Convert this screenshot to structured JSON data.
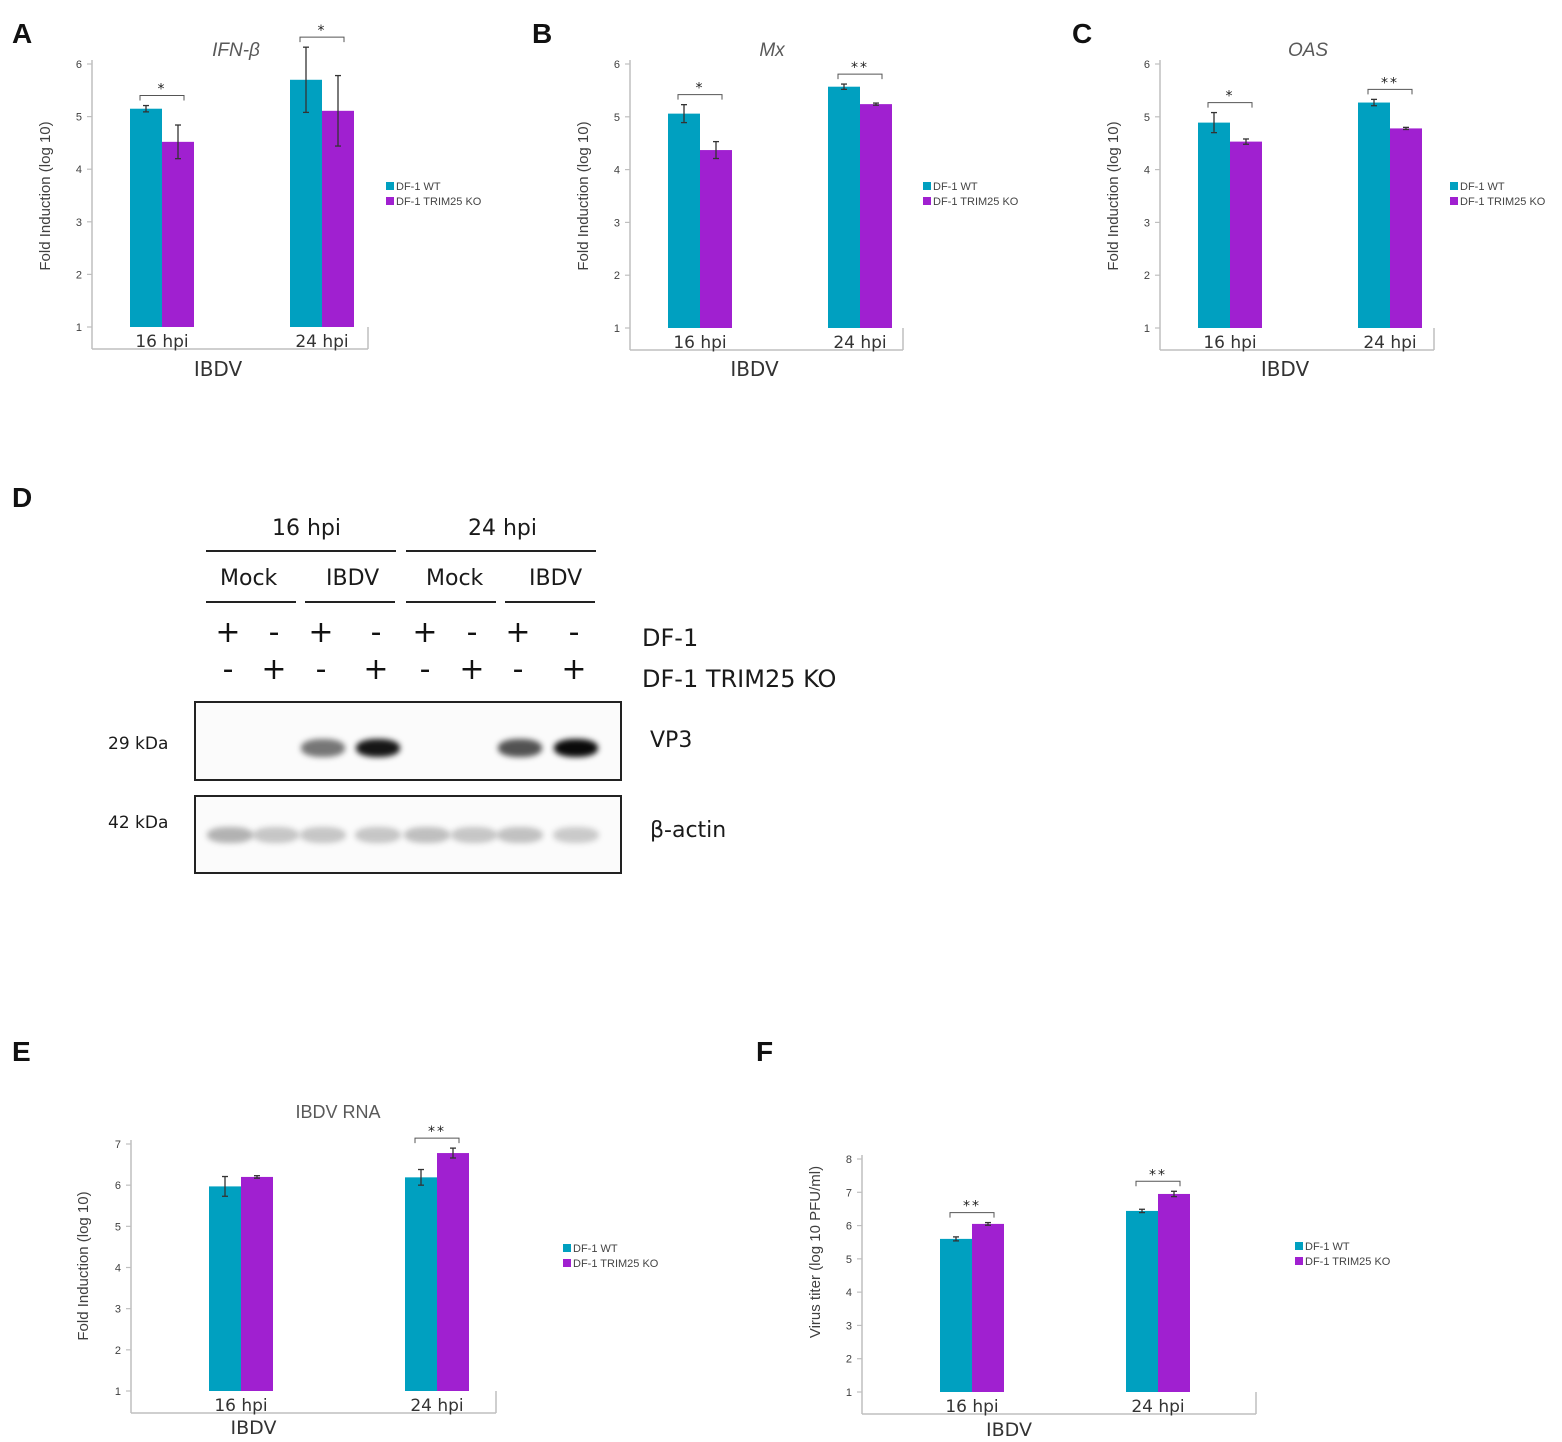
{
  "panels": {
    "A": "A",
    "B": "B",
    "C": "C",
    "D": "D",
    "E": "E",
    "F": "F"
  },
  "colors": {
    "wt": "#00a0c0",
    "ko": "#a020d0",
    "axis": "#bfbfbf",
    "tick_text": "#404040",
    "errbar": "#333333"
  },
  "chart_data": [
    {
      "id": "A",
      "type": "bar",
      "title": "IFN-β",
      "title_italic": true,
      "ylabel": "Fold Induction (log 10)",
      "xlabel": "IBDV",
      "categories": [
        "16 hpi",
        "24 hpi"
      ],
      "ylim": [
        1,
        6
      ],
      "yticks": [
        1,
        2,
        3,
        4,
        5,
        6
      ],
      "series": [
        {
          "name": "DF-1 WT",
          "values": [
            5.15,
            5.7
          ],
          "errors": [
            0.06,
            0.62
          ]
        },
        {
          "name": "DF-1 TRIM25 KO",
          "values": [
            4.52,
            5.11
          ],
          "errors": [
            0.32,
            0.67
          ]
        }
      ],
      "significance": [
        "*",
        "*"
      ],
      "legend_position": "right"
    },
    {
      "id": "B",
      "type": "bar",
      "title": "Mx",
      "title_italic": true,
      "ylabel": "Fold Induction (log 10)",
      "xlabel": "IBDV",
      "categories": [
        "16 hpi",
        "24 hpi"
      ],
      "ylim": [
        1,
        6
      ],
      "yticks": [
        1,
        2,
        3,
        4,
        5,
        6
      ],
      "series": [
        {
          "name": "DF-1 WT",
          "values": [
            5.06,
            5.57
          ],
          "errors": [
            0.17,
            0.05
          ]
        },
        {
          "name": "DF-1 TRIM25 KO",
          "values": [
            4.37,
            5.24
          ],
          "errors": [
            0.16,
            0.02
          ]
        }
      ],
      "significance": [
        "*",
        "**"
      ],
      "legend_position": "right"
    },
    {
      "id": "C",
      "type": "bar",
      "title": "OAS",
      "title_italic": true,
      "ylabel": "Fold Induction (log 10)",
      "xlabel": "IBDV",
      "categories": [
        "16 hpi",
        "24 hpi"
      ],
      "ylim": [
        1,
        6
      ],
      "yticks": [
        1,
        2,
        3,
        4,
        5,
        6
      ],
      "series": [
        {
          "name": "DF-1 WT",
          "values": [
            4.89,
            5.27
          ],
          "errors": [
            0.19,
            0.06
          ]
        },
        {
          "name": "DF-1 TRIM25 KO",
          "values": [
            4.53,
            4.78
          ],
          "errors": [
            0.05,
            0.02
          ]
        }
      ],
      "significance": [
        "*",
        "**"
      ],
      "legend_position": "right"
    },
    {
      "id": "E",
      "type": "bar",
      "title": "IBDV RNA",
      "title_italic": false,
      "ylabel": "Fold Induction (log 10)",
      "xlabel": "IBDV",
      "categories": [
        "16 hpi",
        "24 hpi"
      ],
      "ylim": [
        1,
        7
      ],
      "yticks": [
        1,
        2,
        3,
        4,
        5,
        6,
        7
      ],
      "series": [
        {
          "name": "DF-1 WT",
          "values": [
            5.97,
            6.19
          ],
          "errors": [
            0.24,
            0.19
          ]
        },
        {
          "name": "DF-1 TRIM25 KO",
          "values": [
            6.2,
            6.78
          ],
          "errors": [
            0.03,
            0.12
          ]
        }
      ],
      "significance": [
        "",
        "**"
      ],
      "legend_position": "right"
    },
    {
      "id": "F",
      "type": "bar",
      "title": "",
      "title_italic": false,
      "ylabel": "Virus titer (log 10 PFU/ml)",
      "xlabel": "IBDV",
      "categories": [
        "16 hpi",
        "24 hpi"
      ],
      "ylim": [
        1,
        8
      ],
      "yticks": [
        1,
        2,
        3,
        4,
        5,
        6,
        7,
        8
      ],
      "series": [
        {
          "name": "DF-1 WT",
          "values": [
            5.6,
            6.44
          ],
          "errors": [
            0.06,
            0.05
          ]
        },
        {
          "name": "DF-1 TRIM25 KO",
          "values": [
            6.05,
            6.95
          ],
          "errors": [
            0.04,
            0.08
          ]
        }
      ],
      "significance": [
        "**",
        "**"
      ],
      "legend_position": "right"
    }
  ],
  "blot": {
    "timepoints": [
      "16 hpi",
      "24 hpi"
    ],
    "conditions": [
      "Mock",
      "IBDV",
      "Mock",
      "IBDV"
    ],
    "row_labels": [
      "DF-1",
      "DF-1 TRIM25 KO"
    ],
    "df1_signs": [
      "+",
      "-",
      "+",
      "-",
      "+",
      "-",
      "+",
      "-"
    ],
    "ko_signs": [
      "-",
      "+",
      "-",
      "+",
      "-",
      "+",
      "-",
      "+"
    ],
    "vp3_label": "VP3",
    "actin_label": "β-actin",
    "vp3_kda": "29 kDa",
    "actin_kda": "42 kDa",
    "vp3_intensity": [
      0,
      0,
      0.55,
      0.95,
      0,
      0,
      0.7,
      1.0
    ],
    "actin_intensity": [
      0.3,
      0.22,
      0.22,
      0.22,
      0.25,
      0.22,
      0.24,
      0.2
    ]
  }
}
